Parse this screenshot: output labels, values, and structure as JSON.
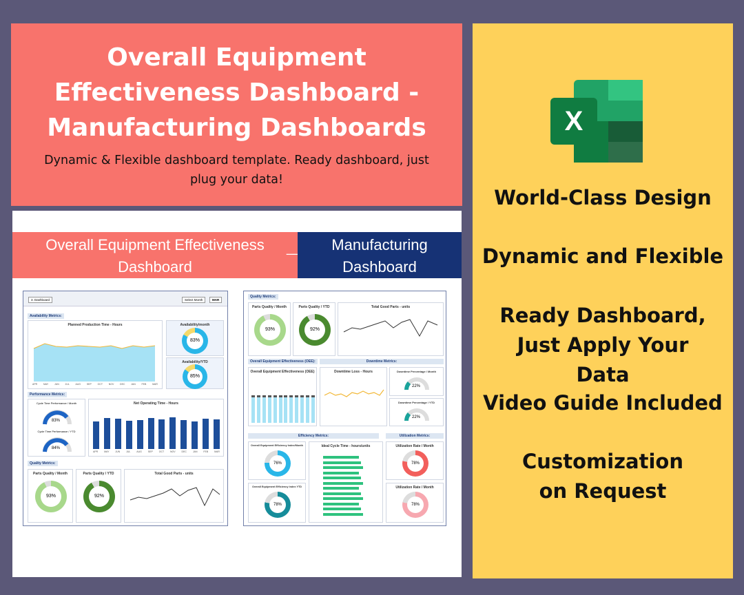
{
  "banner": {
    "title": "Overall Equipment Effectiveness Dashboard  - Manufacturing Dashboards",
    "subtitle": "Dynamic & Flexible dashboard template. Ready dashboard, just plug your data!"
  },
  "preview": {
    "header_left": "Overall Equipment Effectiveness Dashboard",
    "header_sep": "__",
    "header_right": "Manufacturing Dashboard",
    "left": {
      "tab": "3. Dashboard",
      "select_month_label": "Select Month",
      "select_month_value": "MAR",
      "availability_label": "Availability Metrics:",
      "planned_title": "Planned Production Time - Hours",
      "availability_month_title": "Availability/month",
      "availability_month_value": "83%",
      "availability_ytd_title": "Availability/YTD",
      "availability_ytd_value": "85%",
      "performance_label": "Performance Metrics:",
      "cycle_month_title": "Cycle Time Performance / Month",
      "cycle_month_value": "83%",
      "cycle_ytd_title": "Cycle Time Performance / YTD",
      "cycle_ytd_value": "84%",
      "net_operating_title": "Net Operating Time - Hours",
      "quality_label": "Quality Metrics:",
      "parts_quality_month_title": "Parts Quality / Month",
      "parts_quality_month_value": "93%",
      "parts_quality_ytd_title": "Parts Quality / YTD",
      "parts_quality_ytd_value": "92%",
      "total_good_title": "Total Good Parts - units",
      "months": [
        "APR",
        "MAY",
        "JUN",
        "JUL",
        "AUG",
        "SEP",
        "OCT",
        "NOV",
        "DEC",
        "JAN",
        "FEB",
        "MAR"
      ]
    },
    "right": {
      "quality_label": "Quality Metrics:",
      "parts_quality_month_title": "Parts Quality / Month",
      "parts_quality_month_value": "93%",
      "parts_quality_ytd_title": "Parts Quality / YTD",
      "parts_quality_ytd_value": "92%",
      "total_good_title": "Total Good Parts - units",
      "oee_label": "Overall Equipment Effectiveness (OEE):",
      "downtime_label": "Downtime Metrics:",
      "oee_chart_title": "Overall Equipment Effectiveness (OEE)",
      "downtime_loss_title": "Downtime Loss - Hours",
      "downtime_month_title": "Downtime Percentage / Month",
      "downtime_month_value": "22%",
      "downtime_ytd_title": "Downtime Percentage / YTD",
      "downtime_ytd_value": "22%",
      "efficiency_label": "Efficiency Metrics:",
      "utilization_label": "Utilization Metrics:",
      "oee_index_month_title": "Overall Equipment Efficiency Index/Month",
      "oee_index_month_value": "76%",
      "oee_index_ytd_title": "Overall Equipment Efficiency Index YTD",
      "oee_index_ytd_value": "78%",
      "ideal_cycle_title": "Ideal Cycle Time - hours/units",
      "utilization_month_title": "Utilization Rate / Month",
      "utilization_month_value": "78%",
      "utilization_ytd_title": "Utilization Rate / Month",
      "utilization_ytd_value": "78%"
    }
  },
  "features": {
    "icon": "excel-icon",
    "items": [
      "World-Class Design",
      "Dynamic and Flexible",
      "Ready Dashboard, Just Apply Your Data",
      "Video Guide Included",
      "Customization on Request"
    ]
  },
  "colors": {
    "background": "#5b5878",
    "coral": "#f8736c",
    "navy": "#163275",
    "yellow": "#fed15a",
    "excel_green": "#1f7a45"
  }
}
